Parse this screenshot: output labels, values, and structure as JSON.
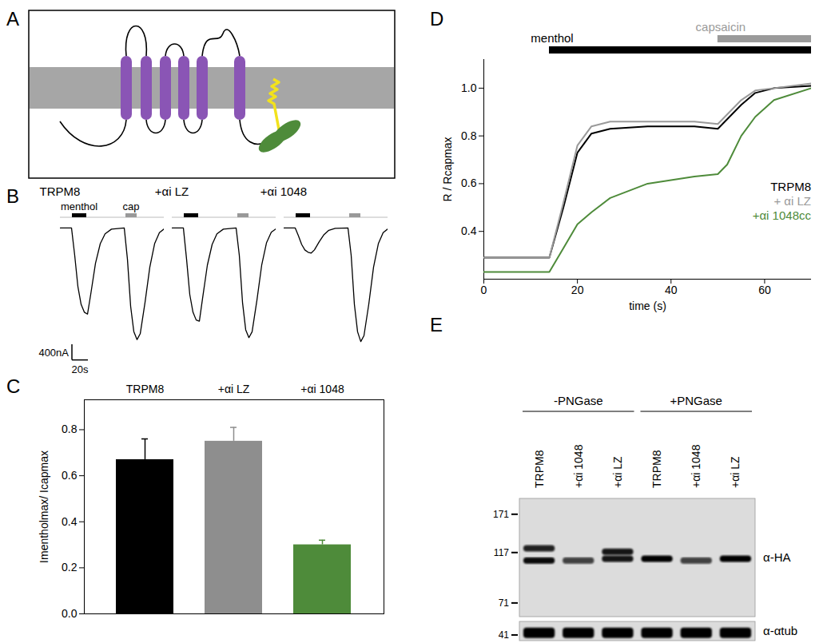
{
  "diagram": {
    "title": "A"
  },
  "chart_data": [
    {
      "type": "traces",
      "title": "B",
      "x": [
        0,
        14,
        18,
        22,
        26,
        30,
        34,
        38,
        44,
        50,
        56,
        64,
        80,
        84,
        88,
        92,
        96,
        100,
        106,
        112,
        118,
        124,
        130
      ],
      "xlim": [
        0,
        130
      ],
      "ylim": [
        -3000,
        100
      ],
      "tick_labels": false,
      "series": [
        {
          "name": "TRPM8",
          "color": "#000000",
          "values": [
            0,
            0,
            -700,
            -1500,
            -1950,
            -2150,
            -2200,
            -1700,
            -900,
            -400,
            -150,
            -30,
            0,
            -800,
            -2000,
            -2650,
            -2850,
            -2700,
            -1900,
            -1000,
            -400,
            -120,
            -20
          ]
        },
        {
          "name": "+αi LZ",
          "color": "#000000",
          "values": [
            0,
            0,
            -800,
            -1700,
            -2150,
            -2350,
            -2380,
            -1800,
            -950,
            -420,
            -150,
            -30,
            0,
            -700,
            -1900,
            -2600,
            -2800,
            -2650,
            -1850,
            -950,
            -380,
            -110,
            -20
          ]
        },
        {
          "name": "+αi 1048",
          "color": "#000000",
          "values": [
            0,
            0,
            -200,
            -420,
            -560,
            -620,
            -640,
            -560,
            -350,
            -170,
            -60,
            -10,
            0,
            -700,
            -1950,
            -2650,
            -2900,
            -2750,
            -1950,
            -1000,
            -400,
            -120,
            -20
          ]
        }
      ],
      "stimuli": [
        {
          "name": "menthol",
          "start": 15,
          "end": 33,
          "color": "#000000"
        },
        {
          "name": "cap",
          "start": 82,
          "end": 96,
          "color": "#999999"
        }
      ],
      "scale_bar": {
        "y": 400,
        "y_label": "400nA",
        "x": 20,
        "x_label": "20s"
      }
    },
    {
      "type": "bar",
      "title": "C",
      "categories": [
        "TRPM8",
        "+αi LZ",
        "+αi 1048"
      ],
      "values": [
        0.67,
        0.75,
        0.3
      ],
      "errors": [
        0.09,
        0.06,
        0.02
      ],
      "colors": [
        "#000000",
        "#8e8e8e",
        "#4e8b3a"
      ],
      "y_label": "Imentholmax/ Icapmax",
      "ylim": [
        0,
        0.93
      ],
      "yticks": [
        {
          "value": 0,
          "label": "0.0"
        },
        {
          "value": 0.2,
          "label": "0.2"
        },
        {
          "value": 0.4,
          "label": "0.4"
        },
        {
          "value": 0.6,
          "label": "0.6"
        },
        {
          "value": 0.8,
          "label": "0.8"
        }
      ]
    },
    {
      "type": "line",
      "title": "D",
      "x": [
        0,
        14,
        17,
        20,
        23,
        27,
        35,
        45,
        50,
        52,
        55,
        58,
        62,
        70
      ],
      "series": [
        {
          "name": "TRPM8",
          "color": "#000000",
          "values": [
            0.29,
            0.29,
            0.5,
            0.73,
            0.81,
            0.83,
            0.84,
            0.84,
            0.83,
            0.87,
            0.93,
            0.98,
            1.0,
            1.01
          ]
        },
        {
          "name": "+ αi LZ",
          "color": "#9a9a9a",
          "values": [
            0.29,
            0.29,
            0.52,
            0.76,
            0.84,
            0.86,
            0.86,
            0.86,
            0.85,
            0.89,
            0.95,
            0.99,
            1.0,
            1.02
          ]
        },
        {
          "name": "+αi 1048cc",
          "color": "#4e8b3a",
          "values": [
            0.23,
            0.23,
            0.33,
            0.43,
            0.48,
            0.54,
            0.6,
            0.63,
            0.64,
            0.68,
            0.8,
            0.88,
            0.95,
            1.0
          ]
        }
      ],
      "x_label": "time (s)",
      "y_label": "R / Rcapmax",
      "xlim": [
        0,
        70
      ],
      "xticks": [
        0,
        20,
        40,
        60
      ],
      "ylim": [
        0.2,
        1.12
      ],
      "yticks": [
        0.4,
        0.6,
        0.8,
        {
          "value": 1,
          "label": "1.0"
        }
      ],
      "legend": "right",
      "stimuli": [
        {
          "name": "menthol",
          "start": 14,
          "end": 70,
          "color": "#000000"
        },
        {
          "name": "capsaicin",
          "start": 50,
          "end": 70,
          "color": "#9a9a9a"
        }
      ]
    }
  ],
  "blot": {
    "title": "E",
    "log": true,
    "groups": [
      {
        "label": "-PNGase",
        "lanes": [
          "TRPM8",
          "+αi 1048",
          "+αi LZ"
        ]
      },
      {
        "label": "+PNGase",
        "lanes": [
          "TRPM8",
          "+αi 1048",
          "+αi LZ"
        ]
      }
    ],
    "blots": [
      {
        "antibody": "α-HA",
        "ylim": [
          62,
          200
        ],
        "markers": [
          171,
          117,
          71
        ],
        "bands": [
          [
            122,
            108
          ],
          [
            108
          ],
          [
            118,
            110
          ],
          [
            110
          ],
          [
            108
          ],
          [
            110
          ]
        ],
        "intensity": [
          [
            0.85,
            0.95
          ],
          [
            0.7
          ],
          [
            0.9,
            0.9
          ],
          [
            1
          ],
          [
            0.7
          ],
          [
            1
          ]
        ]
      },
      {
        "antibody": "α-αtub",
        "ylim": [
          36,
          56
        ],
        "markers": [
          41
        ],
        "bands": [
          [
            43
          ],
          [
            43
          ],
          [
            43
          ],
          [
            43
          ],
          [
            43
          ],
          [
            43
          ]
        ],
        "intensity": [
          [
            1
          ],
          [
            1
          ],
          [
            1
          ],
          [
            1
          ],
          [
            1
          ],
          [
            1
          ]
        ]
      }
    ]
  }
}
